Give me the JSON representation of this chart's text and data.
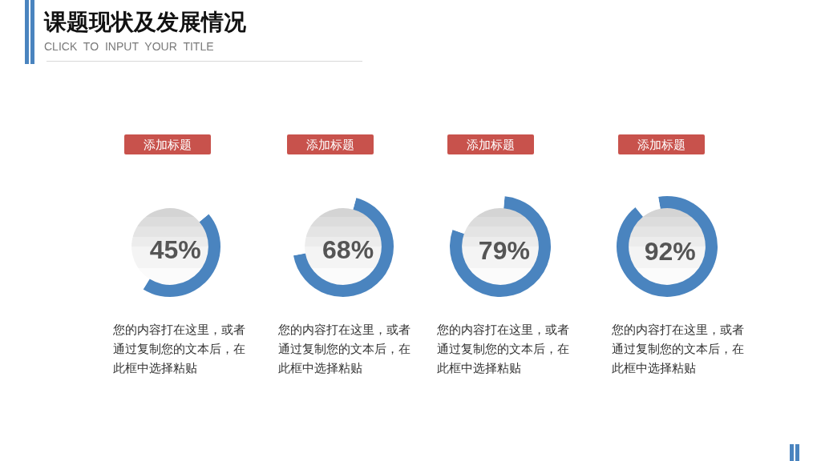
{
  "chart_data": [
    {
      "type": "other",
      "title": "课题现状及发展情况",
      "subtitle": "CLICK TO INPUT YOUR TITLE"
    },
    {
      "type": "donut",
      "title": "添加标题",
      "categories": [
        null,
        null
      ],
      "values": [
        45,
        55
      ],
      "colors": [
        "#4a84bf",
        "#ffffff"
      ],
      "value_labels": [
        "45%",
        null
      ],
      "annotations": [
        "您的内容打在这里，或者通过复制您的文本后，在此框中选择粘贴"
      ]
    },
    {
      "type": "donut",
      "title": "添加标题",
      "categories": [
        null,
        null
      ],
      "values": [
        68,
        32
      ],
      "colors": [
        "#4a84bf",
        "#ffffff"
      ],
      "value_labels": [
        "68%",
        null
      ],
      "annotations": [
        "您的内容打在这里，或者通过复制您的文本后，在此框中选择粘贴"
      ]
    },
    {
      "type": "donut",
      "title": "添加标题",
      "categories": [
        null,
        null
      ],
      "values": [
        79,
        21
      ],
      "colors": [
        "#4a84bf",
        "#ffffff"
      ],
      "value_labels": [
        "79%",
        null
      ],
      "annotations": [
        "您的内容打在这里，或者通过复制您的文本后，在此框中选择粘贴"
      ]
    },
    {
      "type": "donut",
      "title": "添加标题",
      "categories": [
        null,
        null
      ],
      "values": [
        92,
        8
      ],
      "colors": [
        "#4a84bf",
        "#ffffff"
      ],
      "value_labels": [
        "92%",
        null
      ],
      "annotations": [
        "您的内容打在这里，或者通过复制您的文本后，在此框中选择粘贴"
      ]
    }
  ]
}
